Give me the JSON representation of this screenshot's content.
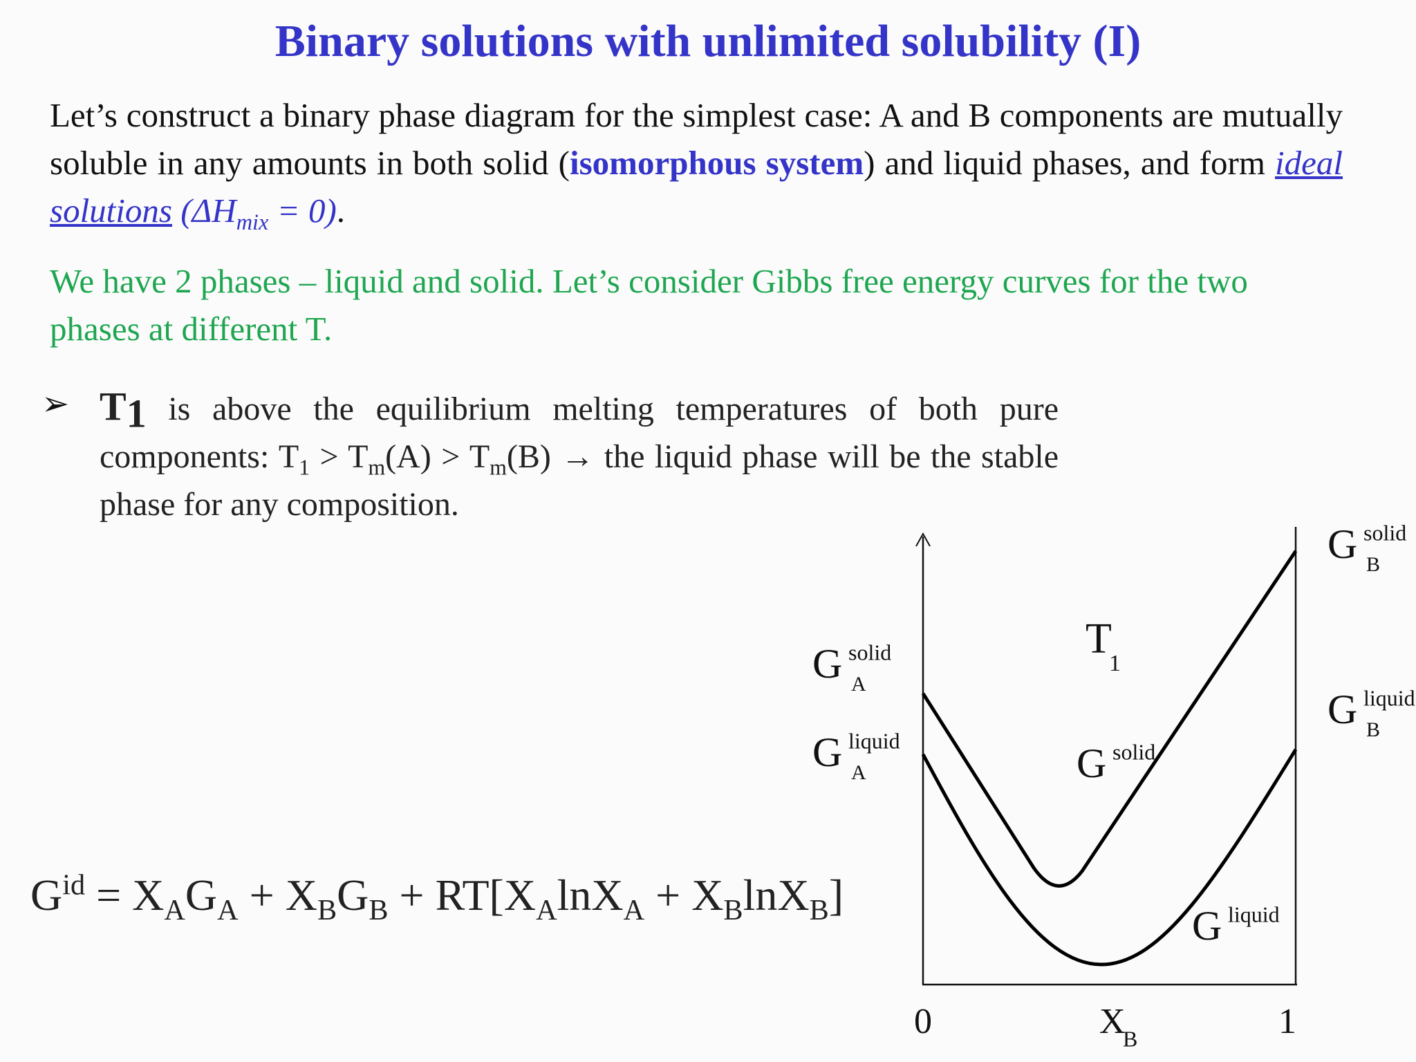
{
  "title": "Binary solutions with unlimited solubility (I)",
  "intro": [
    "Let’s construct a binary phase diagram for the simplest case: A and B components are mutually soluble in any amounts in both solid (",
    "isomorphous system",
    ") and liquid phases, and form ",
    "ideal solutions",
    " (ΔH",
    "mix",
    " = 0)",
    "."
  ],
  "green_note": "We have 2 phases – liquid and solid.  Let’s consider Gibbs free energy curves for the two phases at different T.",
  "bullet": {
    "marker": "➢",
    "runs": [
      "T",
      "1",
      " is above the equilibrium melting temperatures of both pure components:   T",
      "1",
      " > T",
      "m",
      "(A) > T",
      "m",
      "(B)  → the liquid phase will be the stable phase for any composition."
    ]
  },
  "formula": [
    "G",
    "id",
    " = X",
    "A",
    "G",
    "A",
    " + X",
    "B",
    "G",
    "B",
    " + RT[X",
    "A",
    "lnX",
    "A",
    " + X",
    "B",
    "lnX",
    "B",
    "]"
  ],
  "diagram": {
    "temperature": {
      "main": "T",
      "sub": "1"
    },
    "labels": [
      {
        "main": "G",
        "sup": "solid",
        "sub": "A"
      },
      {
        "main": "G",
        "sup": "liquid",
        "sub": "A"
      },
      {
        "main": "G",
        "sup": "solid",
        "sub": "B"
      },
      {
        "main": "G",
        "sup": "liquid",
        "sub": "B"
      },
      {
        "main": "G",
        "sup": "solid"
      },
      {
        "main": "G",
        "sup": "liquid"
      }
    ],
    "x_axis": {
      "start": "0",
      "end": "1",
      "label": "X",
      "label_sub": "B"
    }
  }
}
